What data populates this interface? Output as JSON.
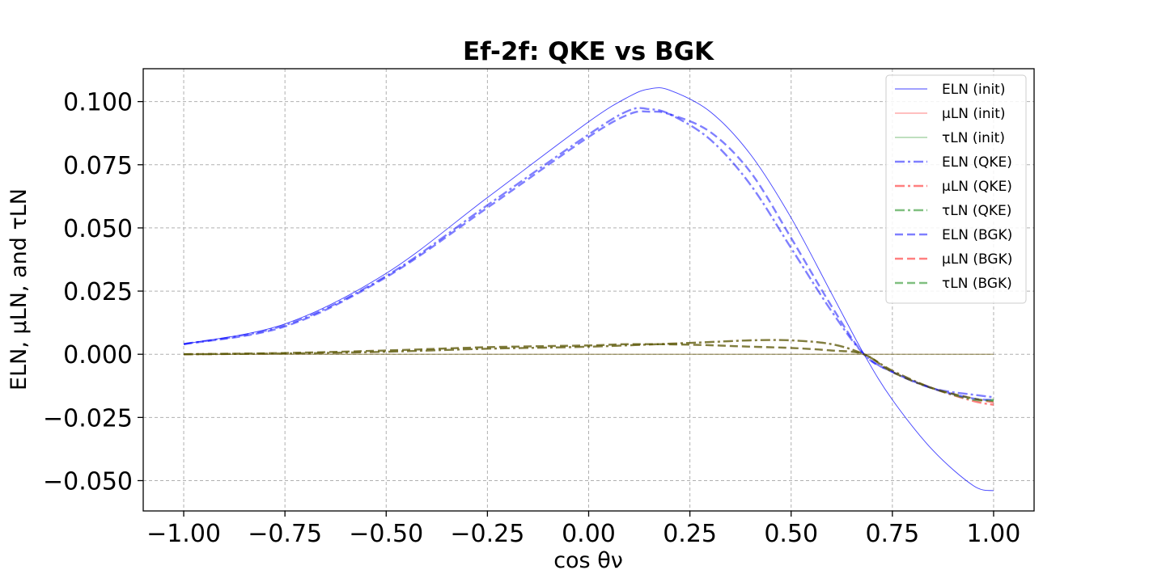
{
  "chart_data": {
    "type": "line",
    "title": "Ef-2f: QKE vs BGK",
    "xlabel": "cos θν",
    "ylabel": "ELN, μLN, and τLN",
    "xlim": [
      -1.1,
      1.1
    ],
    "ylim": [
      -0.062,
      0.113
    ],
    "x_ticks": [
      -1.0,
      -0.75,
      -0.5,
      -0.25,
      0.0,
      0.25,
      0.5,
      0.75,
      1.0
    ],
    "x_tick_labels": [
      "−1.00",
      "−0.75",
      "−0.50",
      "−0.25",
      "0.00",
      "0.25",
      "0.50",
      "0.75",
      "1.00"
    ],
    "y_ticks": [
      -0.05,
      -0.025,
      0.0,
      0.025,
      0.05,
      0.075,
      0.1
    ],
    "y_tick_labels": [
      "−0.050",
      "−0.025",
      "0.000",
      "0.025",
      "0.050",
      "0.075",
      "0.100"
    ],
    "grid": true,
    "legend_position": "top-right",
    "series": [
      {
        "name": "ELN (init)",
        "color": "#0000ff",
        "style": "solid",
        "width": 0.9,
        "opacity": 0.75,
        "x": [
          -1.0,
          -0.75,
          -0.5,
          -0.25,
          0.0,
          0.1,
          0.15,
          0.2,
          0.3,
          0.4,
          0.5,
          0.6,
          0.68,
          0.75,
          0.85,
          0.95,
          1.0
        ],
        "y": [
          0.004,
          0.012,
          0.032,
          0.062,
          0.092,
          0.102,
          0.105,
          0.1045,
          0.096,
          0.079,
          0.054,
          0.024,
          0.0,
          -0.018,
          -0.038,
          -0.052,
          -0.054
        ]
      },
      {
        "name": "μLN (init)",
        "color": "#ff0000",
        "style": "solid",
        "width": 0.9,
        "opacity": 0.5,
        "x": [
          -1.0,
          1.0
        ],
        "y": [
          0.0,
          0.0
        ]
      },
      {
        "name": "τLN (init)",
        "color": "#008000",
        "style": "solid",
        "width": 0.9,
        "opacity": 0.5,
        "x": [
          -1.0,
          1.0
        ],
        "y": [
          0.0,
          0.0
        ]
      },
      {
        "name": "ELN (QKE)",
        "color": "#0000ff",
        "style": "dashdot",
        "width": 2.4,
        "opacity": 0.5,
        "x": [
          -1.0,
          -0.75,
          -0.5,
          -0.25,
          0.0,
          0.1,
          0.15,
          0.2,
          0.3,
          0.4,
          0.5,
          0.6,
          0.68,
          0.75,
          0.85,
          0.95,
          1.0
        ],
        "y": [
          0.004,
          0.0115,
          0.031,
          0.059,
          0.087,
          0.0965,
          0.097,
          0.095,
          0.085,
          0.067,
          0.042,
          0.017,
          0.0,
          -0.007,
          -0.0135,
          -0.016,
          -0.017
        ]
      },
      {
        "name": "μLN (QKE)",
        "color": "#ff0000",
        "style": "dashdot",
        "width": 2.4,
        "opacity": 0.5,
        "x": [
          -1.0,
          -0.75,
          -0.5,
          -0.25,
          0.0,
          0.25,
          0.4,
          0.5,
          0.6,
          0.68,
          0.75,
          0.85,
          0.95,
          1.0
        ],
        "y": [
          0.0,
          0.0003,
          0.001,
          0.0022,
          0.003,
          0.0045,
          0.0055,
          0.0055,
          0.004,
          0.0,
          -0.0065,
          -0.0135,
          -0.0185,
          -0.02
        ]
      },
      {
        "name": "τLN (QKE)",
        "color": "#008000",
        "style": "dashdot",
        "width": 2.4,
        "opacity": 0.5,
        "x": [
          -1.0,
          -0.75,
          -0.5,
          -0.25,
          0.0,
          0.25,
          0.4,
          0.5,
          0.6,
          0.68,
          0.75,
          0.85,
          0.95,
          1.0
        ],
        "y": [
          0.0,
          0.0003,
          0.001,
          0.0022,
          0.003,
          0.0045,
          0.0055,
          0.0055,
          0.004,
          0.0,
          -0.0065,
          -0.0135,
          -0.018,
          -0.018
        ]
      },
      {
        "name": "ELN (BGK)",
        "color": "#0000ff",
        "style": "dashed",
        "width": 2.4,
        "opacity": 0.5,
        "x": [
          -1.0,
          -0.75,
          -0.5,
          -0.25,
          0.0,
          0.1,
          0.15,
          0.2,
          0.3,
          0.4,
          0.5,
          0.6,
          0.68,
          0.75,
          0.85,
          0.95,
          1.0
        ],
        "y": [
          0.004,
          0.011,
          0.0305,
          0.058,
          0.086,
          0.095,
          0.096,
          0.095,
          0.088,
          0.072,
          0.046,
          0.019,
          0.0,
          -0.007,
          -0.0135,
          -0.0175,
          -0.018
        ]
      },
      {
        "name": "μLN (BGK)",
        "color": "#ff0000",
        "style": "dashed",
        "width": 2.4,
        "opacity": 0.5,
        "x": [
          -1.0,
          -0.75,
          -0.5,
          -0.25,
          0.0,
          0.1,
          0.25,
          0.4,
          0.5,
          0.6,
          0.68,
          0.75,
          0.85,
          0.95,
          1.0
        ],
        "y": [
          0.0,
          0.0005,
          0.0015,
          0.0028,
          0.0035,
          0.004,
          0.0038,
          0.003,
          0.0025,
          0.0015,
          0.0,
          -0.007,
          -0.0135,
          -0.0175,
          -0.019
        ]
      },
      {
        "name": "τLN (BGK)",
        "color": "#008000",
        "style": "dashed",
        "width": 2.4,
        "opacity": 0.5,
        "x": [
          -1.0,
          -0.75,
          -0.5,
          -0.25,
          0.0,
          0.1,
          0.25,
          0.4,
          0.5,
          0.6,
          0.68,
          0.75,
          0.85,
          0.95,
          1.0
        ],
        "y": [
          0.0,
          0.0005,
          0.0015,
          0.0028,
          0.0035,
          0.004,
          0.0038,
          0.003,
          0.0025,
          0.0015,
          0.0,
          -0.007,
          -0.0135,
          -0.0175,
          -0.0185
        ]
      }
    ]
  }
}
